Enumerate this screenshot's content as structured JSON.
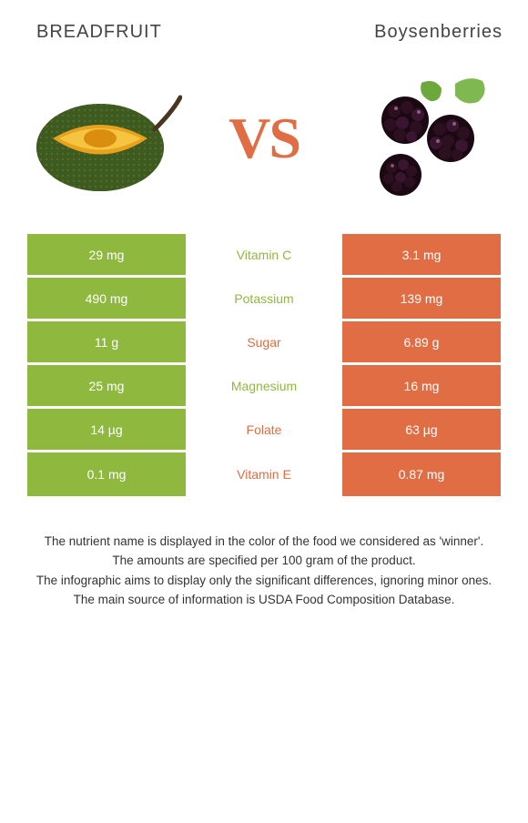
{
  "header": {
    "left_title": "BREADFRUIT",
    "right_title": "Boysenberries"
  },
  "hero": {
    "vs_text": "VS"
  },
  "colors": {
    "left": "#8fb83e",
    "right": "#e06d44",
    "background": "#ffffff"
  },
  "table": {
    "type": "comparison-table",
    "rows": [
      {
        "left_value": "29 mg",
        "nutrient": "Vitamin C",
        "right_value": "3.1 mg",
        "winner": "left"
      },
      {
        "left_value": "490 mg",
        "nutrient": "Potassium",
        "right_value": "139 mg",
        "winner": "left"
      },
      {
        "left_value": "11 g",
        "nutrient": "Sugar",
        "right_value": "6.89 g",
        "winner": "right"
      },
      {
        "left_value": "25 mg",
        "nutrient": "Magnesium",
        "right_value": "16 mg",
        "winner": "left"
      },
      {
        "left_value": "14 µg",
        "nutrient": "Folate",
        "right_value": "63 µg",
        "winner": "right"
      },
      {
        "left_value": "0.1 mg",
        "nutrient": "Vitamin E",
        "right_value": "0.87 mg",
        "winner": "right"
      }
    ]
  },
  "footnotes": {
    "line1": "The nutrient name is displayed in the color of the food we considered as 'winner'.",
    "line2": "The amounts are specified per 100 gram of the product.",
    "line3": "The infographic aims to display only the significant differences, ignoring minor ones.",
    "line4": "The main source of information is USDA Food Composition Database."
  }
}
